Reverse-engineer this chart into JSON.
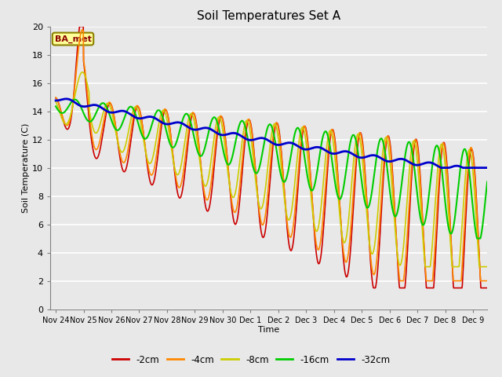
{
  "title": "Soil Temperatures Set A",
  "xlabel": "Time",
  "ylabel": "Soil Temperature (C)",
  "ylim": [
    0,
    20
  ],
  "background_color": "#e8e8e8",
  "annotation_text": "BA_met",
  "annotation_bg": "#ffff99",
  "annotation_border": "#8B8000",
  "tick_labels": [
    "Nov 24",
    "Nov 25",
    "Nov 26",
    "Nov 27",
    "Nov 28",
    "Nov 29",
    "Nov 30",
    "Dec 1",
    "Dec 2",
    "Dec 3",
    "Dec 4",
    "Dec 5",
    "Dec 6",
    "Dec 7",
    "Dec 8",
    "Dec 9"
  ],
  "series": [
    {
      "label": "-2cm",
      "color": "#cc0000",
      "lw": 1.2
    },
    {
      "label": "-4cm",
      "color": "#ff8800",
      "lw": 1.2
    },
    {
      "label": "-8cm",
      "color": "#cccc00",
      "lw": 1.2
    },
    {
      "label": "-16cm",
      "color": "#00cc00",
      "lw": 1.5
    },
    {
      "label": "-32cm",
      "color": "#0000cc",
      "lw": 2.0
    }
  ]
}
